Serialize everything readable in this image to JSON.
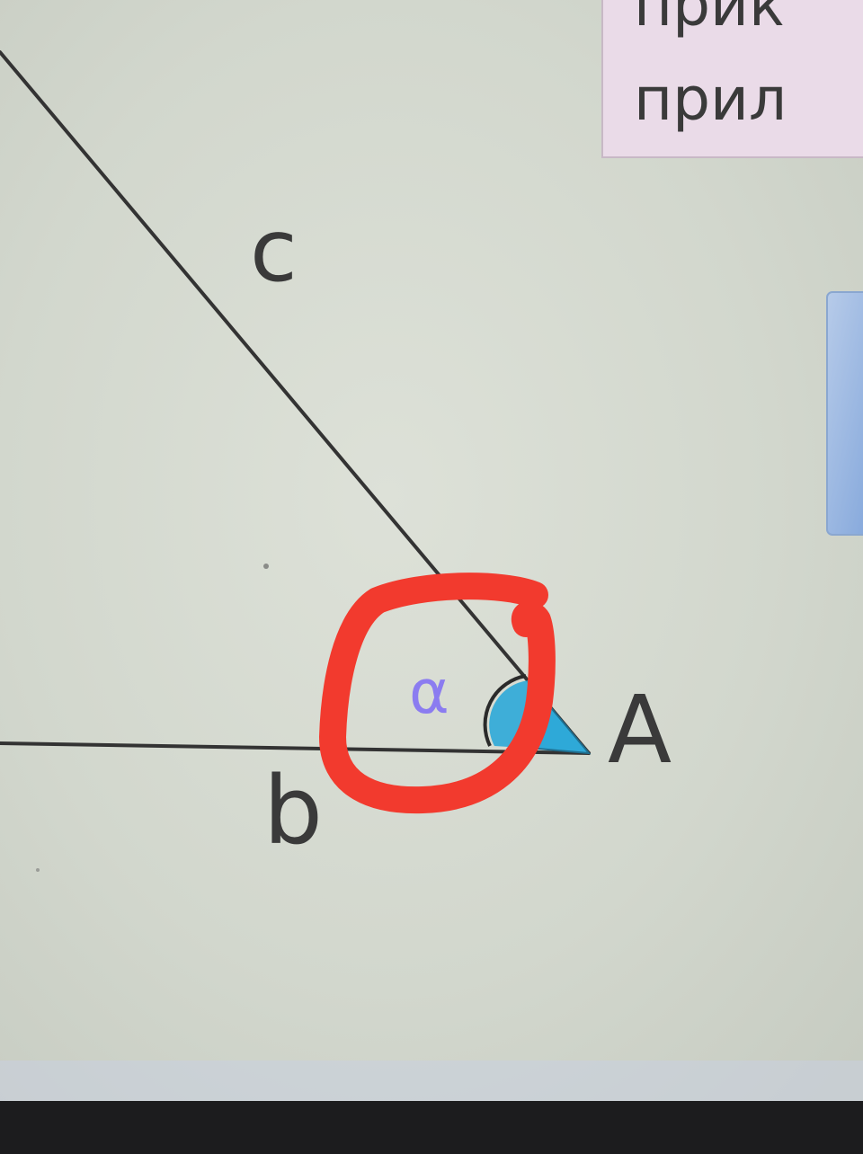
{
  "diagram": {
    "labels": {
      "side_c": "c",
      "side_b": "b",
      "vertex_a": "A",
      "angle_alpha": "α"
    },
    "top_card": {
      "line1": "прик",
      "line2": "прил"
    }
  },
  "colors": {
    "screen_background": "#d3d8ce",
    "line": "#333333",
    "text": "#3a3a3a",
    "alpha": "#8b7cf0",
    "angle_fill": "#2ea9d8",
    "annotation_red": "#f23a2e",
    "card_top": "#eadbe8",
    "card_right": "#9dbbe4",
    "bezel": "#1c1c1e"
  }
}
